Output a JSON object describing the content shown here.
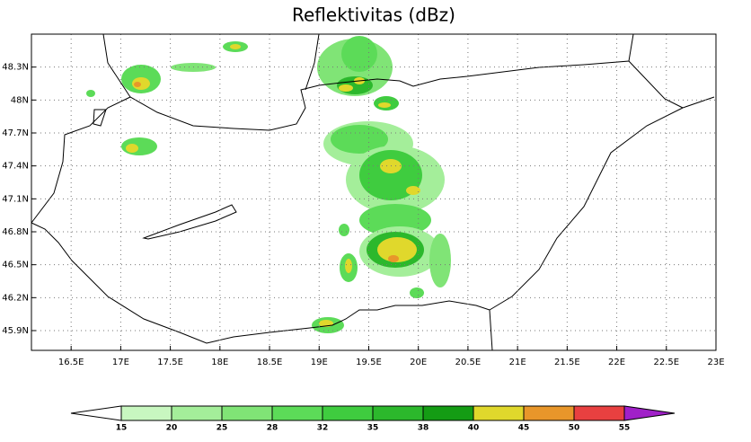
{
  "map": {
    "title": "Reflektivitas (dBz)",
    "xlim": [
      16.1,
      23
    ],
    "ylim": [
      45.72,
      48.6
    ],
    "xticks": [
      {
        "value": 16.5,
        "label": "16.5E"
      },
      {
        "value": 17,
        "label": "17E"
      },
      {
        "value": 17.5,
        "label": "17.5E"
      },
      {
        "value": 18,
        "label": "18E"
      },
      {
        "value": 18.5,
        "label": "18.5E"
      },
      {
        "value": 19,
        "label": "19E"
      },
      {
        "value": 19.5,
        "label": "19.5E"
      },
      {
        "value": 20,
        "label": "20E"
      },
      {
        "value": 20.5,
        "label": "20.5E"
      },
      {
        "value": 21,
        "label": "21E"
      },
      {
        "value": 21.5,
        "label": "21.5E"
      },
      {
        "value": 22,
        "label": "22E"
      },
      {
        "value": 22.5,
        "label": "22.5E"
      },
      {
        "value": 23,
        "label": "23E"
      }
    ],
    "yticks": [
      {
        "value": 45.9,
        "label": "45.9N"
      },
      {
        "value": 46.2,
        "label": "46.2N"
      },
      {
        "value": 46.5,
        "label": "46.5N"
      },
      {
        "value": 46.8,
        "label": "46.8N"
      },
      {
        "value": 47.1,
        "label": "47.1N"
      },
      {
        "value": 47.4,
        "label": "47.4N"
      },
      {
        "value": 47.7,
        "label": "47.7N"
      },
      {
        "value": 48,
        "label": "48N"
      },
      {
        "value": 48.3,
        "label": "48.3N"
      }
    ],
    "grid": true
  },
  "colorbar": {
    "levels": [
      15,
      20,
      25,
      28,
      32,
      35,
      38,
      40,
      45,
      50,
      55
    ],
    "colors": [
      "#ffffff",
      "#c8f7c0",
      "#a4ee9a",
      "#80e476",
      "#5cdb58",
      "#3fcc3f",
      "#2cb82c",
      "#149c14",
      "#e0d82c",
      "#e8962a",
      "#e84040",
      "#a020c8"
    ]
  }
}
